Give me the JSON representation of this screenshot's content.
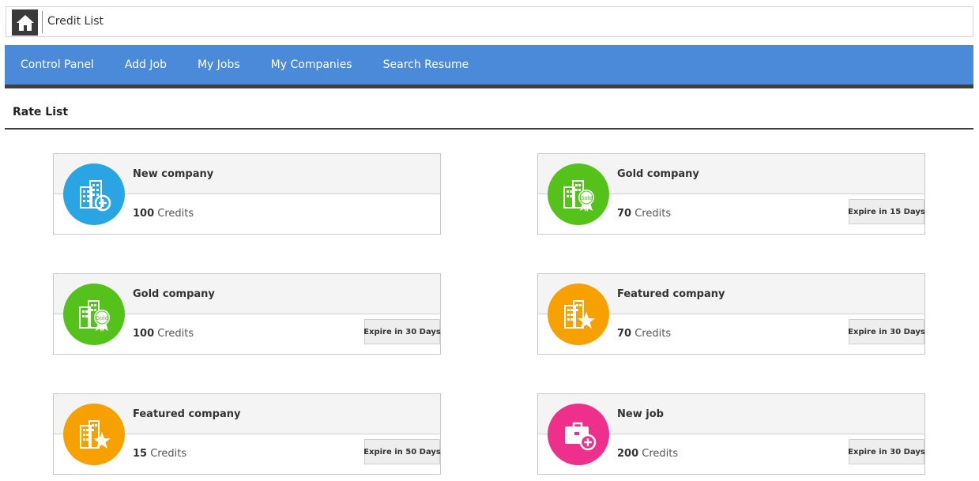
{
  "header": {
    "title": "Credit List",
    "home_icon": "home-icon"
  },
  "nav": {
    "items": [
      "Control Panel",
      "Add Job",
      "My Jobs",
      "My Companies",
      "Search Resume"
    ]
  },
  "section": {
    "title": "Rate List"
  },
  "credits_label": "Credits",
  "cards": [
    {
      "name": "New company",
      "amount": "100",
      "expire": "",
      "icon": "new-company-icon",
      "color": "#2aa5e4"
    },
    {
      "name": "Gold company",
      "amount": "70",
      "expire": "Expire in 15 Days",
      "icon": "gold-company-icon",
      "color": "#55c21b"
    },
    {
      "name": "Gold company",
      "amount": "100",
      "expire": "Expire in 30 Days",
      "icon": "gold-company-icon",
      "color": "#55c21b"
    },
    {
      "name": "Featured company",
      "amount": "70",
      "expire": "Expire in 30 Days",
      "icon": "featured-company-icon",
      "color": "#f7a100"
    },
    {
      "name": "Featured company",
      "amount": "15",
      "expire": "Expire in 50 Days",
      "icon": "featured-company-icon",
      "color": "#f7a100"
    },
    {
      "name": "New job",
      "amount": "200",
      "expire": "Expire in 30 Days",
      "icon": "new-job-icon",
      "color": "#ee2f8c"
    }
  ],
  "badge_text": "Gold"
}
